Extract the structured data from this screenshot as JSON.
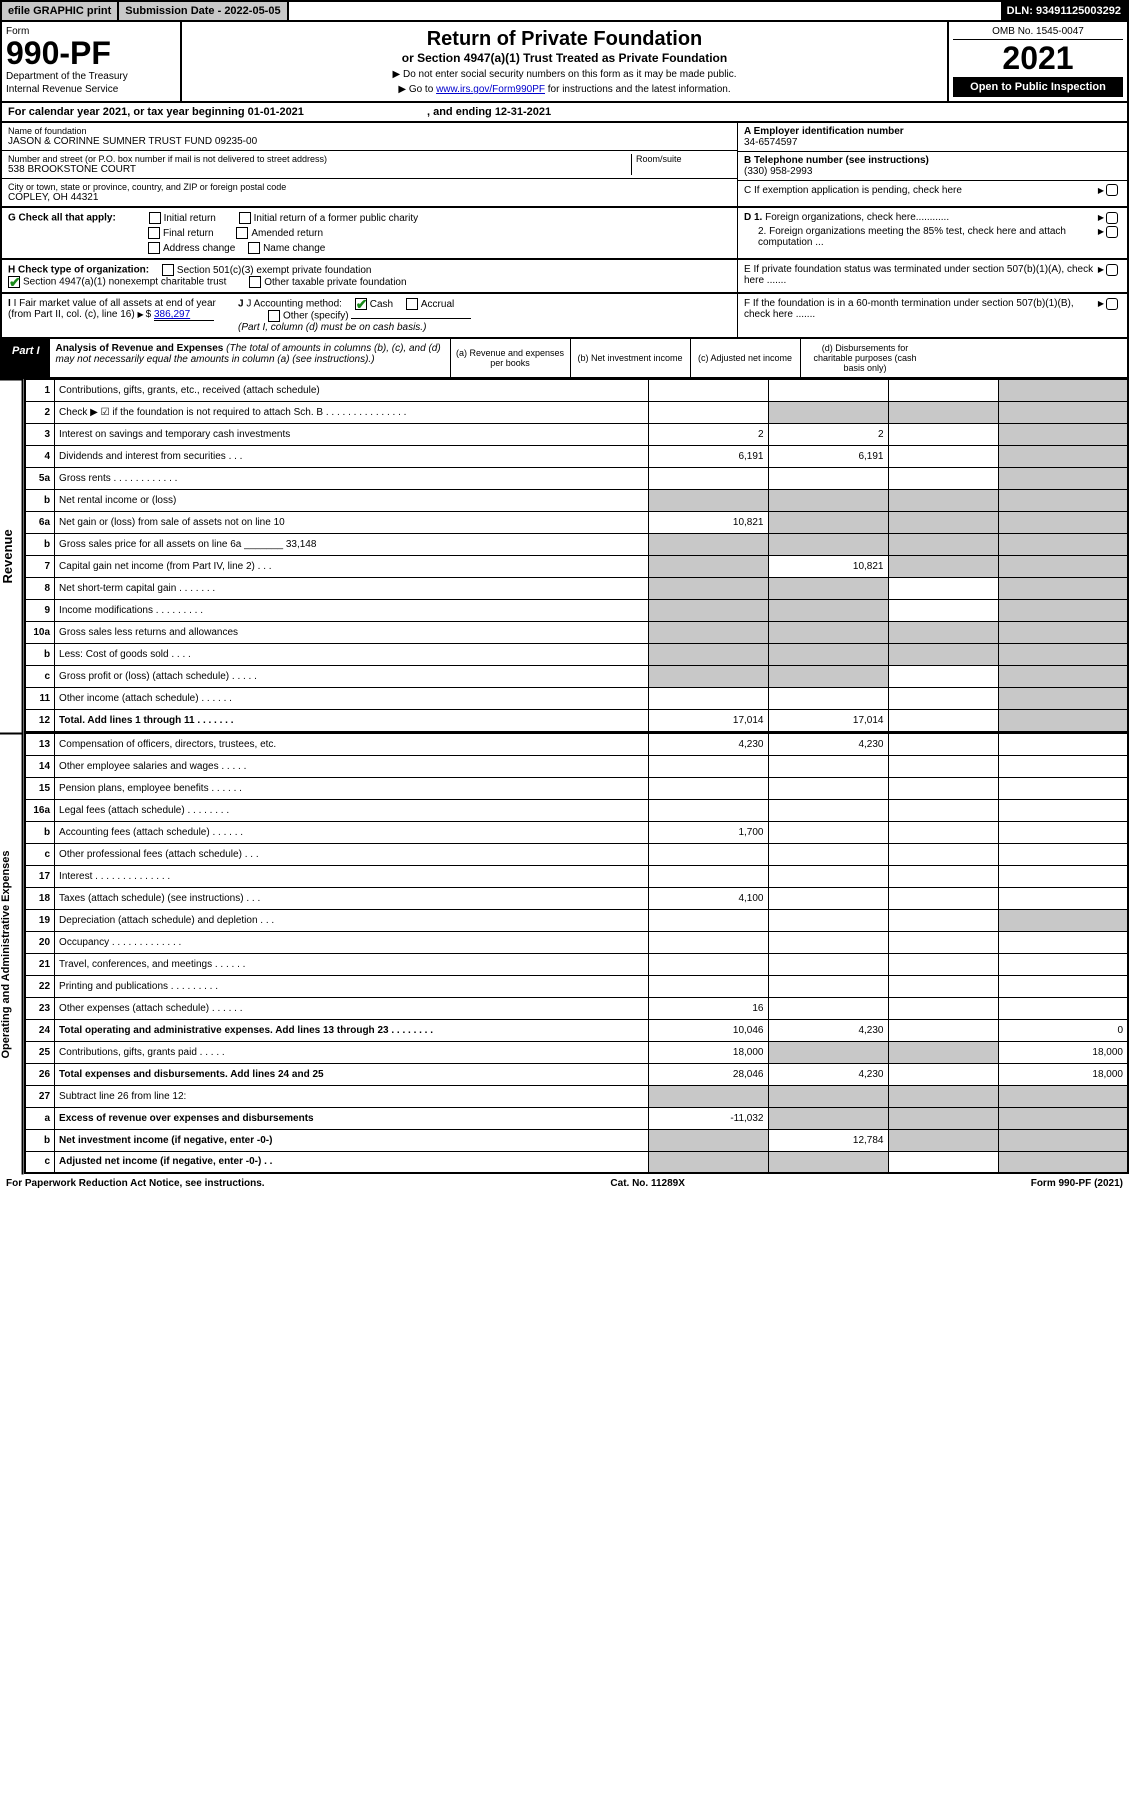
{
  "topbar": {
    "efile": "efile GRAPHIC print",
    "submission": "Submission Date - 2022-05-05",
    "dln": "DLN: 93491125003292"
  },
  "header": {
    "form": "Form",
    "formno": "990-PF",
    "dept": "Department of the Treasury",
    "irs": "Internal Revenue Service",
    "title": "Return of Private Foundation",
    "subtitle": "or Section 4947(a)(1) Trust Treated as Private Foundation",
    "note1": "▶ Do not enter social security numbers on this form as it may be made public.",
    "note2": "▶ Go to ",
    "link": "www.irs.gov/Form990PF",
    "note3": " for instructions and the latest information.",
    "omb": "OMB No. 1545-0047",
    "year": "2021",
    "open": "Open to Public Inspection"
  },
  "calyear": {
    "text": "For calendar year 2021, or tax year beginning 01-01-2021",
    "ending": ", and ending 12-31-2021"
  },
  "id": {
    "name_label": "Name of foundation",
    "name": "JASON & CORINNE SUMNER TRUST FUND 09235-00",
    "addr_label": "Number and street (or P.O. box number if mail is not delivered to street address)",
    "addr": "538 BROOKSTONE COURT",
    "room_label": "Room/suite",
    "city_label": "City or town, state or province, country, and ZIP or foreign postal code",
    "city": "COPLEY, OH  44321",
    "a_label": "A Employer identification number",
    "a_val": "34-6574597",
    "b_label": "B Telephone number (see instructions)",
    "b_val": "(330) 958-2993",
    "c_label": "C If exemption application is pending, check here",
    "d1": "D 1. Foreign organizations, check here............",
    "d2": "2. Foreign organizations meeting the 85% test, check here and attach computation ...",
    "e": "E  If private foundation status was terminated under section 507(b)(1)(A), check here .......",
    "f": "F  If the foundation is in a 60-month termination under section 507(b)(1)(B), check here .......",
    "g_label": "G Check all that apply:",
    "g_opts": [
      "Initial return",
      "Initial return of a former public charity",
      "Final return",
      "Amended return",
      "Address change",
      "Name change"
    ],
    "h_label": "H Check type of organization:",
    "h1": "Section 501(c)(3) exempt private foundation",
    "h2": "Section 4947(a)(1) nonexempt charitable trust",
    "h3": "Other taxable private foundation",
    "i_label": "I Fair market value of all assets at end of year (from Part II, col. (c), line 16)",
    "i_val": "386,297",
    "j_label": "J Accounting method:",
    "j_cash": "Cash",
    "j_accrual": "Accrual",
    "j_other": "Other (specify)",
    "j_note": "(Part I, column (d) must be on cash basis.)"
  },
  "part1": {
    "label": "Part I",
    "title": "Analysis of Revenue and Expenses",
    "note": " (The total of amounts in columns (b), (c), and (d) may not necessarily equal the amounts in column (a) (see instructions).)",
    "cols": {
      "a": "(a) Revenue and expenses per books",
      "b": "(b) Net investment income",
      "c": "(c) Adjusted net income",
      "d": "(d) Disbursements for charitable purposes (cash basis only)"
    }
  },
  "sidelabels": {
    "rev": "Revenue",
    "exp": "Operating and Administrative Expenses"
  },
  "rows": [
    {
      "n": "1",
      "d": "Contributions, gifts, grants, etc., received (attach schedule)",
      "a": "",
      "b": "",
      "c": "",
      "dcol": "grey"
    },
    {
      "n": "2",
      "d": "Check ▶ ☑ if the foundation is not required to attach Sch. B  . . . . . . . . . . . . . . .",
      "a": "",
      "b": "grey",
      "c": "grey",
      "dcol": "grey"
    },
    {
      "n": "3",
      "d": "Interest on savings and temporary cash investments",
      "a": "2",
      "b": "2",
      "c": "",
      "dcol": "grey"
    },
    {
      "n": "4",
      "d": "Dividends and interest from securities  . . .",
      "a": "6,191",
      "b": "6,191",
      "c": "",
      "dcol": "grey"
    },
    {
      "n": "5a",
      "d": "Gross rents  . . . . . . . . . . . .",
      "a": "",
      "b": "",
      "c": "",
      "dcol": "grey"
    },
    {
      "n": "b",
      "d": "Net rental income or (loss)  ",
      "a": "grey",
      "b": "grey",
      "c": "grey",
      "dcol": "grey"
    },
    {
      "n": "6a",
      "d": "Net gain or (loss) from sale of assets not on line 10",
      "a": "10,821",
      "b": "grey",
      "c": "grey",
      "dcol": "grey"
    },
    {
      "n": "b",
      "d": "Gross sales price for all assets on line 6a _______ 33,148",
      "a": "grey",
      "b": "grey",
      "c": "grey",
      "dcol": "grey"
    },
    {
      "n": "7",
      "d": "Capital gain net income (from Part IV, line 2)  . . .",
      "a": "grey",
      "b": "10,821",
      "c": "grey",
      "dcol": "grey"
    },
    {
      "n": "8",
      "d": "Net short-term capital gain  . . . . . . .",
      "a": "grey",
      "b": "grey",
      "c": "",
      "dcol": "grey"
    },
    {
      "n": "9",
      "d": "Income modifications . . . . . . . . .",
      "a": "grey",
      "b": "grey",
      "c": "",
      "dcol": "grey"
    },
    {
      "n": "10a",
      "d": "Gross sales less returns and allowances",
      "a": "grey",
      "b": "grey",
      "c": "grey",
      "dcol": "grey"
    },
    {
      "n": "b",
      "d": "Less: Cost of goods sold  . . . .",
      "a": "grey",
      "b": "grey",
      "c": "grey",
      "dcol": "grey"
    },
    {
      "n": "c",
      "d": "Gross profit or (loss) (attach schedule)  . . . . .",
      "a": "grey",
      "b": "grey",
      "c": "",
      "dcol": "grey"
    },
    {
      "n": "11",
      "d": "Other income (attach schedule)  . . . . . .",
      "a": "",
      "b": "",
      "c": "",
      "dcol": "grey"
    },
    {
      "n": "12",
      "d": "Total. Add lines 1 through 11  . . . . . . .",
      "a": "17,014",
      "b": "17,014",
      "c": "",
      "dcol": "grey",
      "bold": true
    }
  ],
  "exprows": [
    {
      "n": "13",
      "d": "Compensation of officers, directors, trustees, etc.",
      "a": "4,230",
      "b": "4,230",
      "c": "",
      "dcol": ""
    },
    {
      "n": "14",
      "d": "Other employee salaries and wages  . . . . .",
      "a": "",
      "b": "",
      "c": "",
      "dcol": ""
    },
    {
      "n": "15",
      "d": "Pension plans, employee benefits . . . . . .",
      "a": "",
      "b": "",
      "c": "",
      "dcol": ""
    },
    {
      "n": "16a",
      "d": "Legal fees (attach schedule) . . . . . . . .",
      "a": "",
      "b": "",
      "c": "",
      "dcol": ""
    },
    {
      "n": "b",
      "d": "Accounting fees (attach schedule) . . . . . .",
      "a": "1,700",
      "b": "",
      "c": "",
      "dcol": ""
    },
    {
      "n": "c",
      "d": "Other professional fees (attach schedule)  . . .",
      "a": "",
      "b": "",
      "c": "",
      "dcol": ""
    },
    {
      "n": "17",
      "d": "Interest . . . . . . . . . . . . . .",
      "a": "",
      "b": "",
      "c": "",
      "dcol": ""
    },
    {
      "n": "18",
      "d": "Taxes (attach schedule) (see instructions)  . . .",
      "a": "4,100",
      "b": "",
      "c": "",
      "dcol": ""
    },
    {
      "n": "19",
      "d": "Depreciation (attach schedule) and depletion  . . .",
      "a": "",
      "b": "",
      "c": "",
      "dcol": "grey"
    },
    {
      "n": "20",
      "d": "Occupancy . . . . . . . . . . . . .",
      "a": "",
      "b": "",
      "c": "",
      "dcol": ""
    },
    {
      "n": "21",
      "d": "Travel, conferences, and meetings . . . . . .",
      "a": "",
      "b": "",
      "c": "",
      "dcol": ""
    },
    {
      "n": "22",
      "d": "Printing and publications . . . . . . . . .",
      "a": "",
      "b": "",
      "c": "",
      "dcol": ""
    },
    {
      "n": "23",
      "d": "Other expenses (attach schedule) . . . . . .",
      "a": "16",
      "b": "",
      "c": "",
      "dcol": ""
    },
    {
      "n": "24",
      "d": "Total operating and administrative expenses. Add lines 13 through 23  . . . . . . . .",
      "a": "10,046",
      "b": "4,230",
      "c": "",
      "dcol": "0",
      "bold": true
    },
    {
      "n": "25",
      "d": "Contributions, gifts, grants paid  . . . . .",
      "a": "18,000",
      "b": "grey",
      "c": "grey",
      "dcol": "18,000"
    },
    {
      "n": "26",
      "d": "Total expenses and disbursements. Add lines 24 and 25",
      "a": "28,046",
      "b": "4,230",
      "c": "",
      "dcol": "18,000",
      "bold": true
    },
    {
      "n": "27",
      "d": "Subtract line 26 from line 12:",
      "a": "grey",
      "b": "grey",
      "c": "grey",
      "dcol": "grey"
    },
    {
      "n": "a",
      "d": "Excess of revenue over expenses and disbursements",
      "a": "-11,032",
      "b": "grey",
      "c": "grey",
      "dcol": "grey",
      "bold": true
    },
    {
      "n": "b",
      "d": "Net investment income (if negative, enter -0-)",
      "a": "grey",
      "b": "12,784",
      "c": "grey",
      "dcol": "grey",
      "bold": true
    },
    {
      "n": "c",
      "d": "Adjusted net income (if negative, enter -0-)  . .",
      "a": "grey",
      "b": "grey",
      "c": "",
      "dcol": "grey",
      "bold": true
    }
  ],
  "footer": {
    "left": "For Paperwork Reduction Act Notice, see instructions.",
    "center": "Cat. No. 11289X",
    "right": "Form 990-PF (2021)"
  }
}
